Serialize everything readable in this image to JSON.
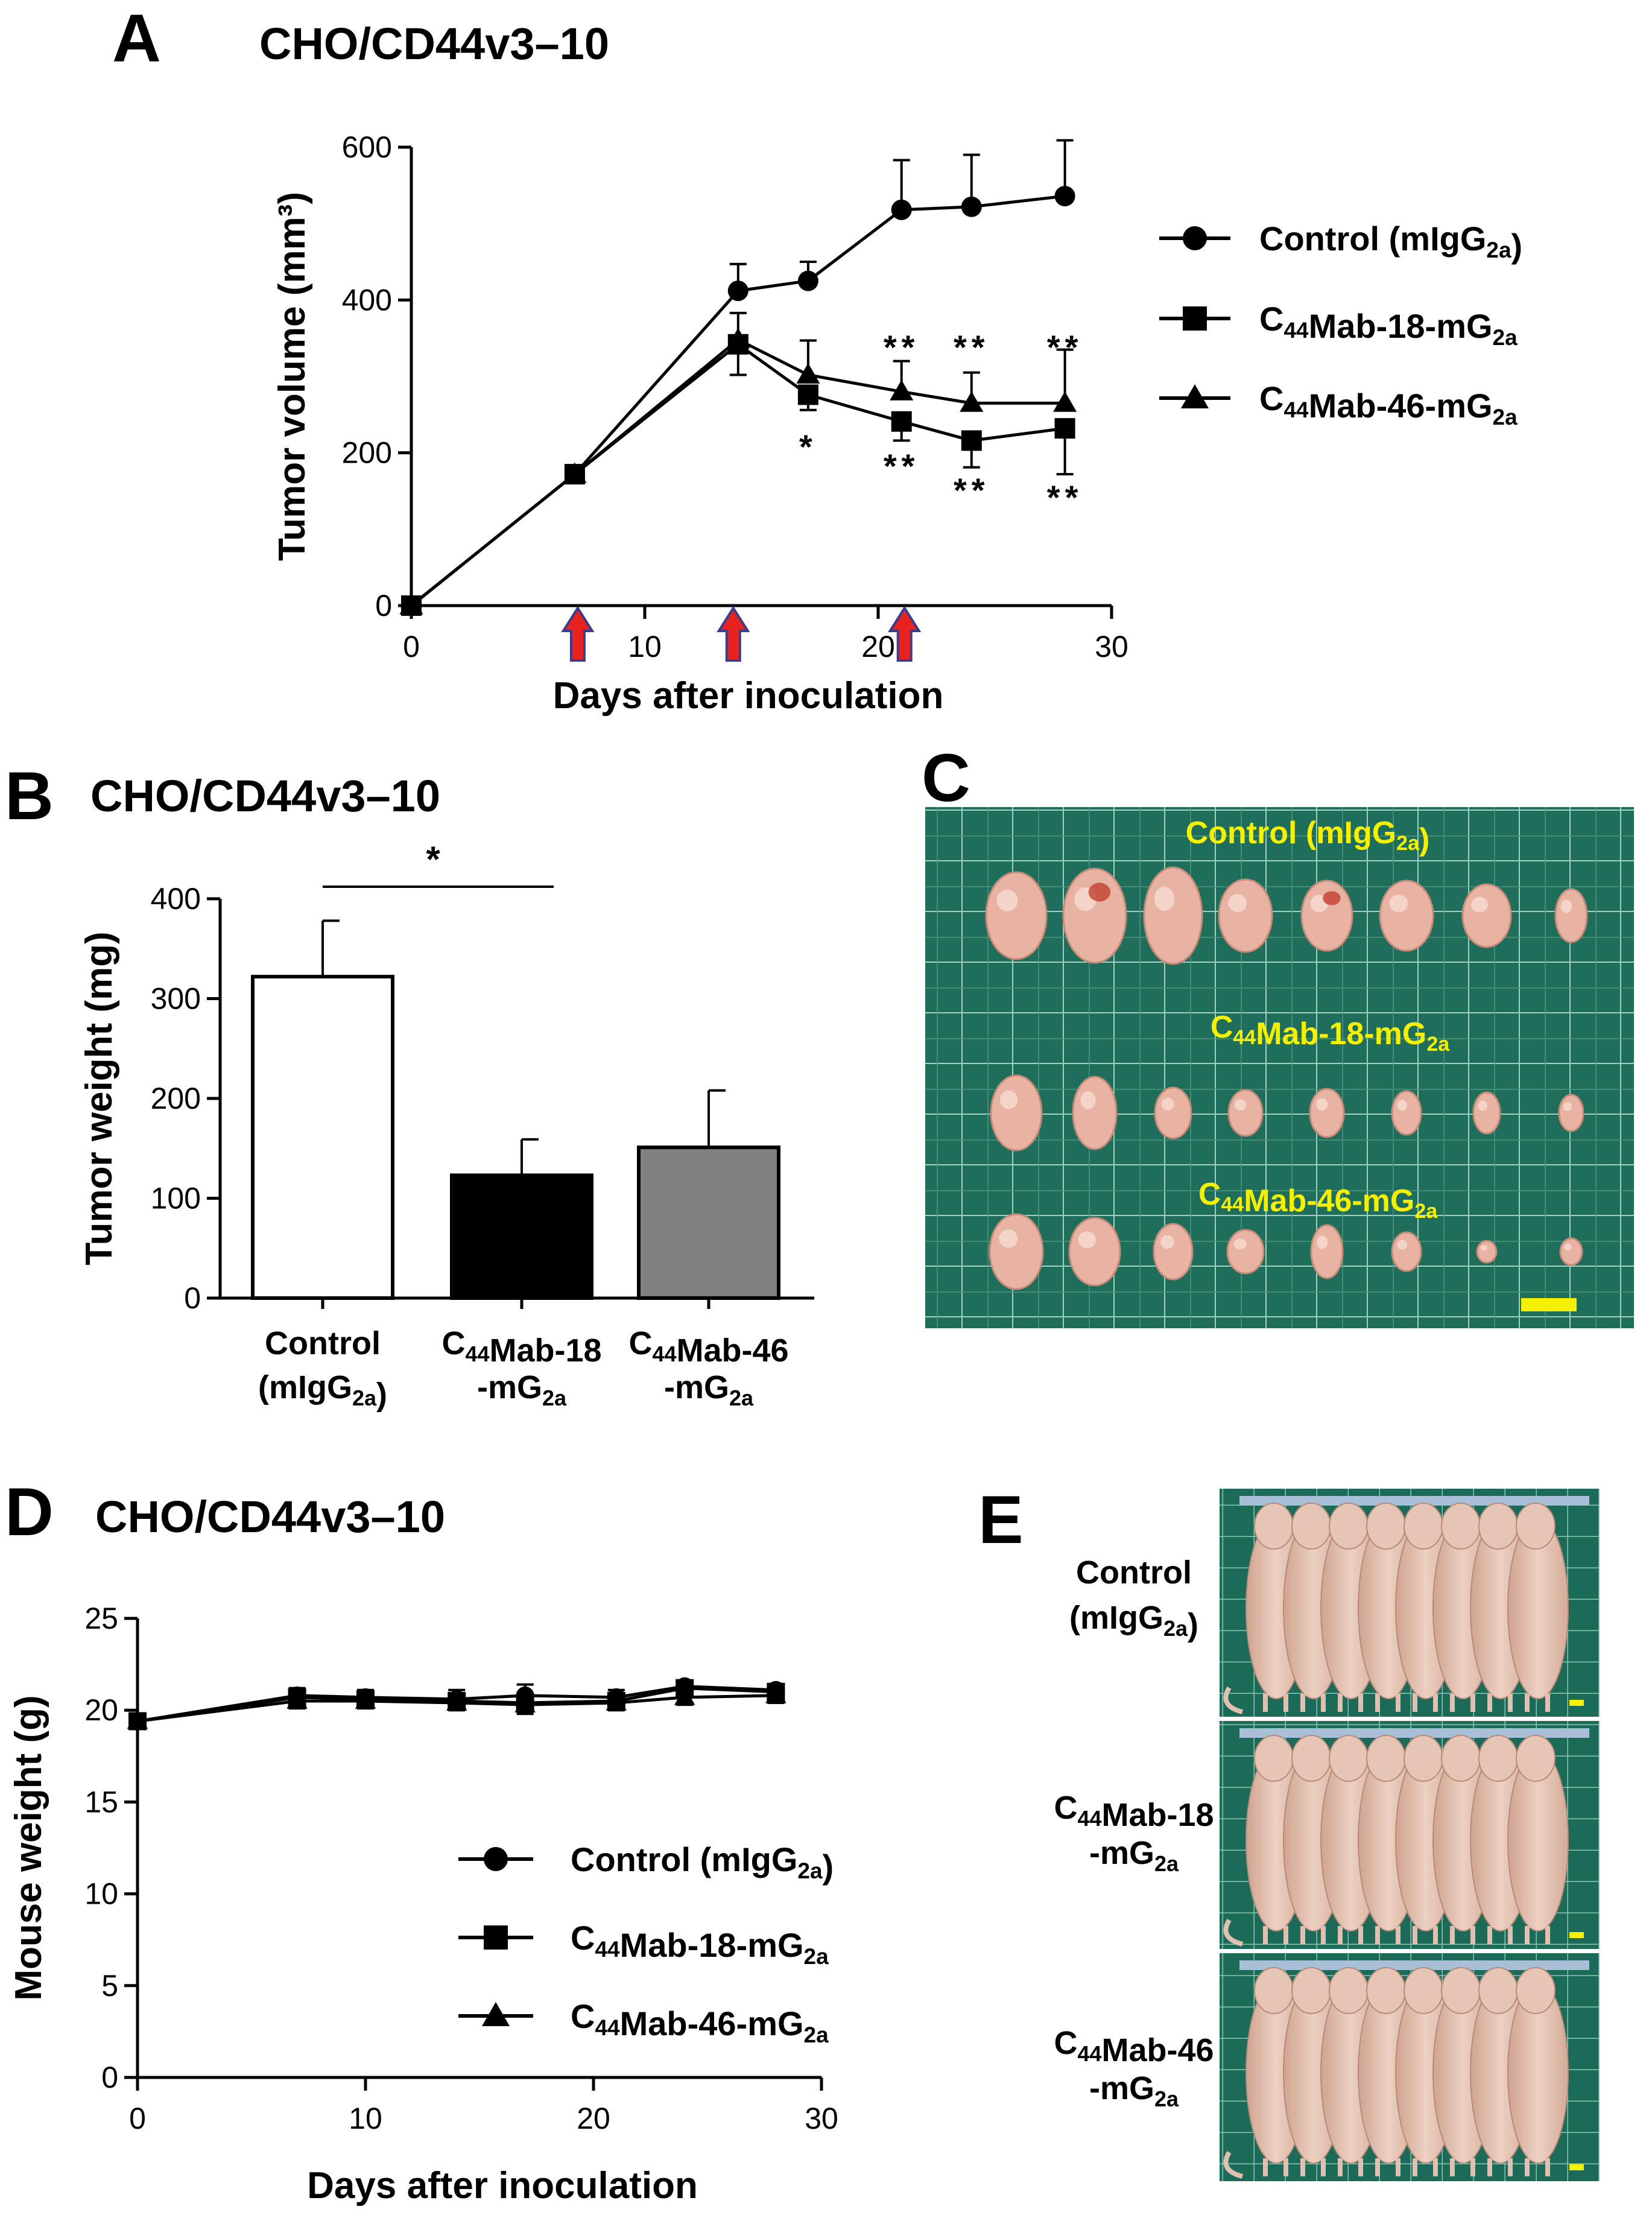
{
  "panels": {
    "A": {
      "letter": "A",
      "title": "CHO/CD44v3–10",
      "legend": [
        {
          "label": "Control (mIgG",
          "sub": "2a",
          "tail": ")",
          "marker": "circle"
        },
        {
          "pre": "C",
          "presub": "44",
          "label": "Mab-18-mG",
          "sub": "2a",
          "tail": "",
          "marker": "square"
        },
        {
          "pre": "C",
          "presub": "44",
          "label": "Mab-46-mG",
          "sub": "2a",
          "tail": "",
          "marker": "triangle"
        }
      ],
      "sig_upper": [
        {
          "x": 21,
          "text": "**"
        },
        {
          "x": 24,
          "text": "**"
        },
        {
          "x": 28,
          "text": "**"
        }
      ],
      "sig_lower": [
        {
          "x": 17,
          "text": "*"
        },
        {
          "x": 21,
          "text": "**"
        },
        {
          "x": 24,
          "text": "**"
        },
        {
          "x": 28,
          "text": "**"
        }
      ],
      "injection_days": [
        7,
        14,
        21
      ]
    },
    "B": {
      "letter": "B",
      "title": "CHO/CD44v3–10",
      "significance": "*"
    },
    "C": {
      "letter": "C",
      "rows": [
        {
          "label": "Control (mIgG",
          "sub": "2a",
          "tail": ")"
        },
        {
          "pre": "C",
          "presub": "44",
          "label": "Mab-18-mG",
          "sub": "2a",
          "tail": ""
        },
        {
          "pre": "C",
          "presub": "44",
          "label": "Mab-46-mG",
          "sub": "2a",
          "tail": ""
        }
      ],
      "colors": {
        "board": "#1f6e5c",
        "grid": "#9fd0c2",
        "label": "#f5f000",
        "tumor": "#e9b3a3"
      }
    },
    "D": {
      "letter": "D",
      "title": "CHO/CD44v3–10"
    },
    "E": {
      "letter": "E",
      "rows": [
        {
          "line1": "Control",
          "line2": "(mIgG",
          "sub": "2a",
          "tail": ")"
        },
        {
          "line1pre": "C",
          "line1sub": "44",
          "line1": "Mab-18",
          "line2": "-mG",
          "sub": "2a",
          "tail": ""
        },
        {
          "line1pre": "C",
          "line1sub": "44",
          "line1": "Mab-46",
          "line2": "-mG",
          "sub": "2a",
          "tail": ""
        }
      ]
    }
  },
  "chart_data": [
    {
      "panel": "A",
      "type": "line",
      "xlabel": "Days after inoculation",
      "ylabel": "Tumor volume (mm³)",
      "xlim": [
        0,
        30
      ],
      "ylim": [
        0,
        600
      ],
      "xticks": [
        0,
        10,
        20,
        30
      ],
      "yticks": [
        0,
        200,
        400,
        600
      ],
      "x": [
        0,
        7,
        14,
        17,
        21,
        24,
        28
      ],
      "series": [
        {
          "name": "Control (mIgG2a)",
          "marker": "circle",
          "values": [
            0,
            172,
            412,
            425,
            518,
            522,
            536
          ],
          "err": [
            0,
            10,
            35,
            25,
            65,
            68,
            73
          ]
        },
        {
          "name": "C44Mab-18-mG2a",
          "marker": "square",
          "values": [
            0,
            172,
            342,
            276,
            241,
            216,
            232
          ],
          "err": [
            0,
            10,
            40,
            20,
            25,
            35,
            60
          ]
        },
        {
          "name": "C44Mab-46-mG2a",
          "marker": "triangle",
          "values": [
            0,
            172,
            348,
            302,
            280,
            265,
            265
          ],
          "err": [
            0,
            10,
            35,
            45,
            40,
            40,
            70
          ]
        }
      ]
    },
    {
      "panel": "B",
      "type": "bar",
      "ylabel": "Tumor weight (mg)",
      "ylim": [
        0,
        400
      ],
      "yticks": [
        0,
        100,
        200,
        300,
        400
      ],
      "categories": [
        {
          "line1": "Control",
          "line2": "(mIgG",
          "sub": "2a",
          "tail": ")"
        },
        {
          "line1pre": "C",
          "line1sub": "44",
          "line1": "Mab-18",
          "line2": "-mG",
          "sub": "2a",
          "tail": ""
        },
        {
          "line1pre": "C",
          "line1sub": "44",
          "line1": "Mab-46",
          "line2": "-mG",
          "sub": "2a",
          "tail": ""
        }
      ],
      "values": [
        322,
        123,
        151
      ],
      "err": [
        56,
        36,
        57
      ],
      "colors": [
        "#ffffff",
        "#000000",
        "#808080"
      ]
    },
    {
      "panel": "D",
      "type": "line",
      "xlabel": "Days after inoculation",
      "ylabel": "Mouse weight (g)",
      "xlim": [
        0,
        30
      ],
      "ylim": [
        0,
        25
      ],
      "xticks": [
        0,
        10,
        20,
        30
      ],
      "yticks": [
        0,
        5,
        10,
        15,
        20,
        25
      ],
      "x": [
        0,
        7,
        10,
        14,
        17,
        21,
        24,
        28
      ],
      "series": [
        {
          "name": "Control (mIgG2a)",
          "marker": "circle",
          "values": [
            19.4,
            20.8,
            20.7,
            20.6,
            20.8,
            20.7,
            21.3,
            21.1
          ],
          "err": [
            0.2,
            0.4,
            0.4,
            0.5,
            0.6,
            0.4,
            0.3,
            0.3
          ]
        },
        {
          "name": "C44Mab-18-mG2a",
          "marker": "square",
          "values": [
            19.4,
            20.7,
            20.6,
            20.5,
            20.4,
            20.5,
            21.2,
            21.0
          ],
          "err": [
            0.2,
            0.4,
            0.4,
            0.4,
            0.5,
            0.4,
            0.3,
            0.3
          ]
        },
        {
          "name": "C44Mab-46-mG2a",
          "marker": "triangle",
          "values": [
            19.4,
            20.5,
            20.5,
            20.4,
            20.3,
            20.4,
            20.7,
            20.8
          ],
          "err": [
            0.2,
            0.4,
            0.4,
            0.4,
            0.5,
            0.4,
            0.4,
            0.4
          ]
        }
      ]
    }
  ]
}
